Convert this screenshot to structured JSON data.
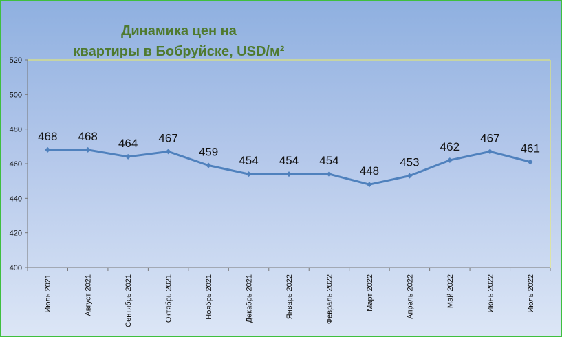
{
  "chart_data": {
    "type": "line",
    "title_line1": "Динамика цен на",
    "title_line2": "квартиры в Бобруйске, USD/м²",
    "categories": [
      "Июль 2021",
      "Август 2021",
      "Сентябрь 2021",
      "Октябрь 2021",
      "Ноябрь 2021",
      "Декабрь 2021",
      "Январь 2022",
      "Февраль 2022",
      "Март 2022",
      "Апрель 2022",
      "Май 2022",
      "Июнь 2022",
      "Июль 2022"
    ],
    "values": [
      468,
      468,
      464,
      467,
      459,
      454,
      454,
      454,
      448,
      453,
      462,
      467,
      461
    ],
    "ylim": [
      400,
      520
    ],
    "yticks": [
      400,
      420,
      440,
      460,
      480,
      500,
      520
    ],
    "line_color": "#4f81bd",
    "xlabel": "",
    "ylabel": ""
  }
}
